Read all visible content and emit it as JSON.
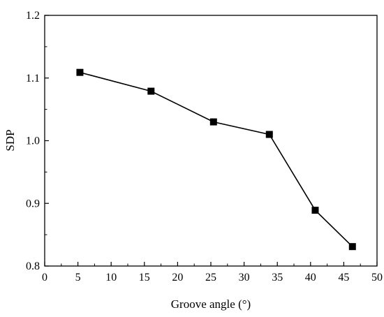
{
  "chart_data": {
    "type": "line",
    "title": "",
    "xlabel": "Groove angle (°)",
    "ylabel": "SDP",
    "xlim": [
      0,
      50
    ],
    "ylim": [
      0.8,
      1.2
    ],
    "xticks": [
      0,
      5,
      10,
      15,
      20,
      25,
      30,
      35,
      40,
      45,
      50
    ],
    "yticks": [
      0.8,
      0.9,
      1.0,
      1.1,
      1.2
    ],
    "xtick_labels": [
      "0",
      "5",
      "10",
      "15",
      "20",
      "25",
      "30",
      "35",
      "40",
      "45",
      "50"
    ],
    "ytick_labels": [
      "0.8",
      "0.9",
      "1.0",
      "1.1",
      "1.2"
    ],
    "grid": false,
    "legend": "none",
    "marker": "filled-square",
    "color": "#000000",
    "series": [
      {
        "x": [
          5.3,
          16.0,
          25.4,
          33.8,
          40.7,
          46.3
        ],
        "values": [
          1.109,
          1.079,
          1.03,
          1.01,
          0.889,
          0.831
        ]
      }
    ]
  }
}
